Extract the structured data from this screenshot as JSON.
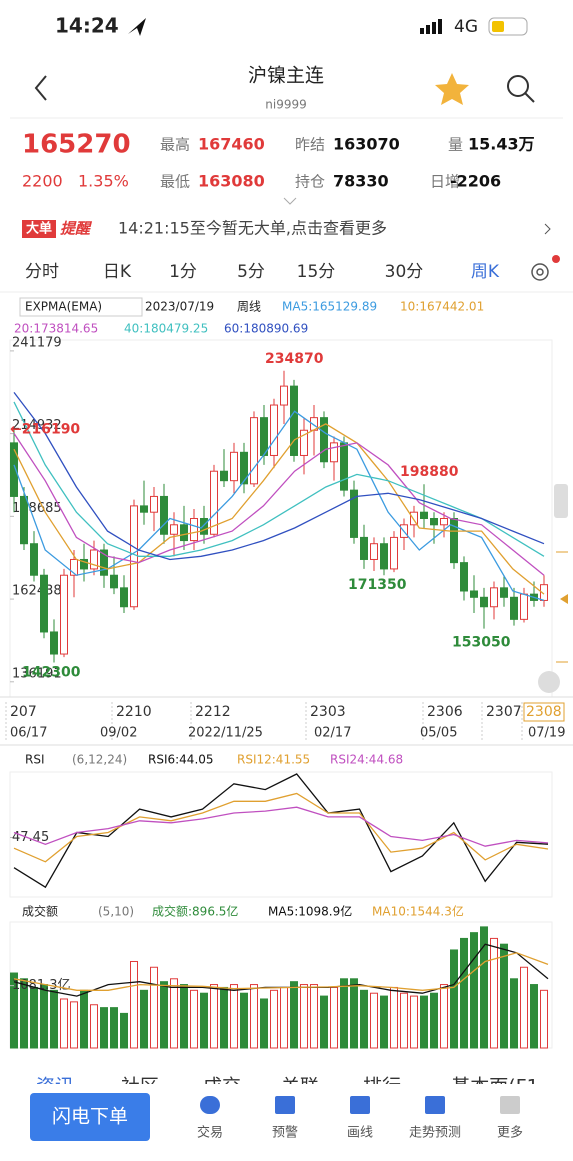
{
  "status": {
    "time": "14:24",
    "network": "4G"
  },
  "nav": {
    "title": "沪镍主连",
    "code": "ni9999"
  },
  "quote": {
    "price": "165270",
    "change": "2200",
    "percent": "1.35%",
    "fields": [
      {
        "label": "最高",
        "value": "167460"
      },
      {
        "label": "最低",
        "value": "163080"
      },
      {
        "label": "昨结",
        "value": "163070"
      },
      {
        "label": "持仓",
        "value": "78330"
      },
      {
        "label": "量",
        "value": "15.43万"
      },
      {
        "label": "日增",
        "value": "-2206"
      }
    ]
  },
  "notice": {
    "tag": "大单",
    "tag2": "提醒",
    "text": "14:21:15至今暂无大单,点击查看更多"
  },
  "tabs": [
    "分时",
    "日K",
    "1分",
    "5分",
    "15分",
    "30分",
    "周K"
  ],
  "chart": {
    "type": "candlestick",
    "indicator": "EXPMA(EMA)",
    "date": "2023/07/19",
    "period": "周线",
    "ylim": [
      132000,
      244000
    ],
    "yticks": [
      241179,
      214932,
      188685,
      162438,
      136191
    ],
    "up_color": "#e03a3a",
    "down_color": "#2e8b3a",
    "candles": [
      [
        212000,
        216190,
        190000,
        195000
      ],
      [
        195000,
        198000,
        178000,
        180000
      ],
      [
        180000,
        184000,
        168000,
        170000
      ],
      [
        170000,
        172000,
        150000,
        152000
      ],
      [
        152000,
        156000,
        142300,
        145000
      ],
      [
        145000,
        172000,
        144000,
        170000
      ],
      [
        170000,
        178000,
        163000,
        175000
      ],
      [
        175000,
        180000,
        168000,
        172000
      ],
      [
        172000,
        181000,
        170000,
        178000
      ],
      [
        178000,
        180000,
        166000,
        170000
      ],
      [
        170000,
        176000,
        164000,
        166000
      ],
      [
        166000,
        170000,
        158000,
        160000
      ],
      [
        160000,
        194000,
        159000,
        192000
      ],
      [
        192000,
        200000,
        186000,
        190000
      ],
      [
        190000,
        198000,
        184000,
        195000
      ],
      [
        195000,
        199000,
        180000,
        183000
      ],
      [
        183000,
        190000,
        176000,
        186000
      ],
      [
        186000,
        192000,
        178000,
        181000
      ],
      [
        181000,
        191000,
        178000,
        188000
      ],
      [
        188000,
        192000,
        180000,
        183000
      ],
      [
        183000,
        205000,
        182000,
        203000
      ],
      [
        203000,
        210000,
        198000,
        200000
      ],
      [
        200000,
        212000,
        196000,
        209000
      ],
      [
        209000,
        212000,
        196000,
        199000
      ],
      [
        199000,
        222000,
        198000,
        220000
      ],
      [
        220000,
        224000,
        205000,
        208000
      ],
      [
        208000,
        226000,
        204000,
        224000
      ],
      [
        224000,
        234870,
        218000,
        230000
      ],
      [
        230000,
        232000,
        206000,
        208000
      ],
      [
        208000,
        220000,
        202000,
        216000
      ],
      [
        216000,
        224000,
        208000,
        220000
      ],
      [
        220000,
        222000,
        204000,
        206000
      ],
      [
        206000,
        214000,
        200000,
        212000
      ],
      [
        212000,
        214000,
        195000,
        197000
      ],
      [
        197000,
        200000,
        180000,
        182000
      ],
      [
        182000,
        186000,
        172000,
        175000
      ],
      [
        175000,
        182000,
        171350,
        180000
      ],
      [
        180000,
        182000,
        170000,
        172000
      ],
      [
        172000,
        184000,
        171000,
        182000
      ],
      [
        182000,
        188000,
        178000,
        186000
      ],
      [
        186000,
        192000,
        182000,
        190000
      ],
      [
        190000,
        198880,
        185000,
        188000
      ],
      [
        188000,
        190000,
        180000,
        186000
      ],
      [
        186000,
        190000,
        182000,
        188000
      ],
      [
        188000,
        190000,
        172000,
        174000
      ],
      [
        174000,
        176000,
        162000,
        165000
      ],
      [
        165000,
        170000,
        158000,
        163000
      ],
      [
        163000,
        166000,
        153050,
        160000
      ],
      [
        160000,
        168000,
        156000,
        166000
      ],
      [
        166000,
        170000,
        160000,
        163000
      ],
      [
        163000,
        166000,
        154000,
        156000
      ],
      [
        156000,
        166000,
        155000,
        164000
      ],
      [
        164000,
        168000,
        160000,
        162000
      ],
      [
        162000,
        170000,
        160000,
        167000
      ]
    ],
    "series": [
      {
        "name": "MA5:165129.89",
        "color": "#3c9be0",
        "values": [
          205000,
          178000,
          170000,
          172000,
          178000,
          188000,
          185000,
          195000,
          208000,
          222000,
          215000,
          210000,
          190000,
          178000,
          186000,
          182000,
          165000,
          162000
        ]
      },
      {
        "name": "10:167442.01",
        "color": "#e0a030",
        "values": [
          210000,
          190000,
          175000,
          172000,
          174000,
          182000,
          184000,
          188000,
          200000,
          213000,
          218000,
          212000,
          200000,
          185000,
          184000,
          184000,
          172000,
          164000
        ]
      },
      {
        "name": "20:173814.65",
        "color": "#c050c0",
        "values": [
          215000,
          200000,
          182000,
          176000,
          174000,
          178000,
          181000,
          184000,
          192000,
          203000,
          210000,
          212000,
          205000,
          193000,
          188000,
          186000,
          178000,
          170000
        ]
      },
      {
        "name": "40:180479.25",
        "color": "#40c0c0",
        "values": [
          225000,
          205000,
          190000,
          180000,
          176000,
          176000,
          178000,
          181000,
          186000,
          192000,
          198000,
          202000,
          200000,
          196000,
          192000,
          188000,
          182000,
          176000
        ]
      },
      {
        "name": "60:180890.69",
        "color": "#3050c0",
        "values": [
          228000,
          215000,
          198000,
          184000,
          178000,
          175000,
          176000,
          178000,
          181000,
          185000,
          190000,
          195000,
          196000,
          194000,
          191000,
          188000,
          184000,
          180000
        ]
      }
    ],
    "annotations": [
      {
        "value": 234870,
        "color": "#e03a3a"
      },
      {
        "value": 216190,
        "label": "←216190",
        "color": "#e03a3a"
      },
      {
        "value": 198880,
        "color": "#e03a3a"
      },
      {
        "value": 171350,
        "color": "#2e8b3a"
      },
      {
        "value": 153050,
        "color": "#2e8b3a"
      },
      {
        "value": 142300,
        "color": "#2e8b3a"
      }
    ],
    "dates": [
      "207",
      "2210",
      "2212",
      "2303",
      "2306",
      "2307",
      "2308"
    ],
    "dates2": [
      "06/17",
      "09/02",
      "2022/11/25",
      "02/17",
      "05/05",
      "07/19"
    ]
  },
  "rsi": {
    "type": "line",
    "name": "RSI",
    "params": "(6,12,24)",
    "ylim": [
      18,
      80
    ],
    "yticks": [
      47.45
    ],
    "series": [
      {
        "name": "RSI6:44.05",
        "color": "#111111",
        "values": [
          32,
          22,
          50,
          48,
          62,
          58,
          62,
          75,
          72,
          80,
          60,
          62,
          30,
          38,
          55,
          25,
          45,
          44.05
        ]
      },
      {
        "name": "RSI12:41.55",
        "color": "#e0a030",
        "values": [
          42,
          35,
          48,
          50,
          58,
          56,
          60,
          66,
          66,
          70,
          60,
          60,
          40,
          42,
          50,
          36,
          44,
          41.55
        ]
      },
      {
        "name": "RSI24:44.68",
        "color": "#c050c0",
        "values": [
          50,
          44,
          50,
          52,
          56,
          55,
          57,
          60,
          61,
          63,
          58,
          58,
          48,
          46,
          49,
          43,
          46,
          44.68
        ]
      }
    ]
  },
  "volume": {
    "type": "bar",
    "name": "成交额",
    "params": "(5,10)",
    "legend": "成交额:896.5亿",
    "ylim": [
      0,
      2150
    ],
    "yticks": [
      {
        "value": 1081.3,
        "label": "1081.3亿"
      }
    ],
    "values": [
      1300,
      1200,
      1050,
      1100,
      1000,
      850,
      800,
      1000,
      750,
      700,
      700,
      600,
      1500,
      1000,
      1400,
      1150,
      1200,
      1100,
      1000,
      950,
      1100,
      1050,
      1100,
      950,
      1100,
      850,
      1000,
      1050,
      1150,
      1100,
      1100,
      900,
      1050,
      1200,
      1200,
      1000,
      950,
      900,
      1050,
      950,
      900,
      900,
      950,
      1100,
      1700,
      1900,
      2000,
      2100,
      1900,
      1800,
      1200,
      1400,
      1100,
      1000
    ],
    "series": [
      {
        "name": "MA5:1098.9亿",
        "color": "#111111",
        "values": [
          1150,
          1000,
          900,
          1100,
          1150,
          1050,
          1050,
          1000,
          1050,
          1050,
          1050,
          1100,
          1000,
          950,
          1100,
          1800,
          1650,
          1200
        ]
      },
      {
        "name": "MA10:1544.3亿",
        "color": "#e0a030",
        "values": [
          1200,
          1100,
          1000,
          1000,
          1100,
          1080,
          1070,
          1030,
          1040,
          1050,
          1060,
          1080,
          1050,
          1000,
          1050,
          1500,
          1650,
          1450
        ]
      }
    ]
  },
  "sections": [
    "资讯",
    "社区",
    "成交",
    "关联",
    "排行",
    "基本面(F1"
  ],
  "order_button": "闪电下单",
  "bottom_nav": [
    "交易",
    "预警",
    "画线",
    "走势预测",
    "更多"
  ]
}
